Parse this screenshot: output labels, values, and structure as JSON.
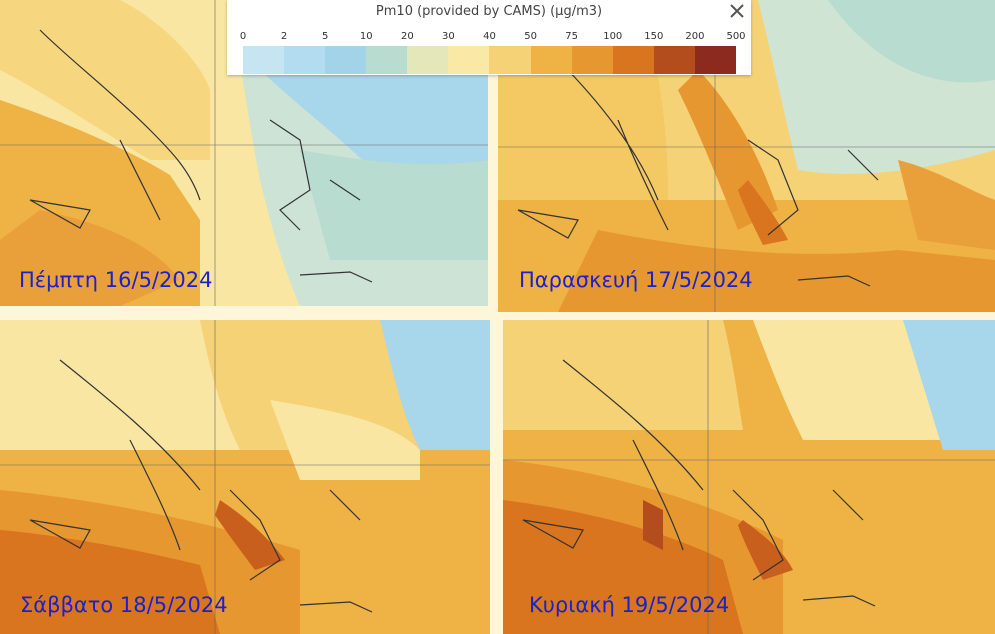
{
  "legend": {
    "title": "Pm10 (provided by CAMS) (µg/m3)",
    "ticks": [
      "0",
      "2",
      "5",
      "10",
      "20",
      "30",
      "40",
      "50",
      "75",
      "100",
      "150",
      "200",
      "500"
    ],
    "colors": [
      "#c5e5f3",
      "#b2ddf0",
      "#a3d3e9",
      "#b9dcd1",
      "#e4e7b9",
      "#f9e8a6",
      "#f6d276",
      "#efb244",
      "#e79730",
      "#d8751e",
      "#b44d1e",
      "#8b2a1d"
    ],
    "close_icon": "close-icon"
  },
  "panels": [
    {
      "label": "Πέμπτη 16/5/2024"
    },
    {
      "label": "Παρασκευή 17/5/2024"
    },
    {
      "label": "Σάββατο 18/5/2024"
    },
    {
      "label": "Κυριακή 19/5/2024"
    }
  ]
}
